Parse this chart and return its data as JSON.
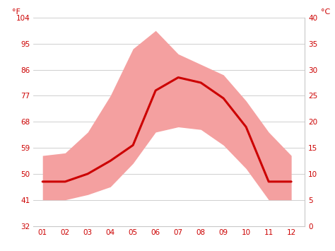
{
  "months": [
    1,
    2,
    3,
    4,
    5,
    6,
    7,
    8,
    9,
    10,
    11,
    12
  ],
  "avg_c": [
    8.5,
    8.5,
    10.0,
    12.5,
    15.5,
    26.0,
    28.5,
    27.5,
    24.5,
    19.0,
    8.5,
    8.5
  ],
  "max_c": [
    13.5,
    14.0,
    18.0,
    25.0,
    34.0,
    37.5,
    33.0,
    31.0,
    29.0,
    24.0,
    18.0,
    13.5
  ],
  "min_c": [
    5.0,
    5.0,
    6.0,
    7.5,
    12.0,
    18.0,
    19.0,
    18.5,
    15.5,
    11.0,
    5.0,
    5.0
  ],
  "line_color": "#cc0000",
  "band_color": "#f4a0a0",
  "background_color": "#ffffff",
  "grid_color": "#c8c8c8",
  "tick_color": "#cc0000",
  "ylim_c": [
    0,
    40
  ],
  "yticks_c": [
    0,
    5,
    10,
    15,
    20,
    25,
    30,
    35,
    40
  ],
  "yticks_f": [
    32,
    41,
    50,
    59,
    68,
    77,
    86,
    95,
    104
  ],
  "xtick_labels": [
    "01",
    "02",
    "03",
    "04",
    "05",
    "06",
    "07",
    "08",
    "09",
    "10",
    "11",
    "12"
  ],
  "left_label": "°F",
  "right_label": "°C"
}
